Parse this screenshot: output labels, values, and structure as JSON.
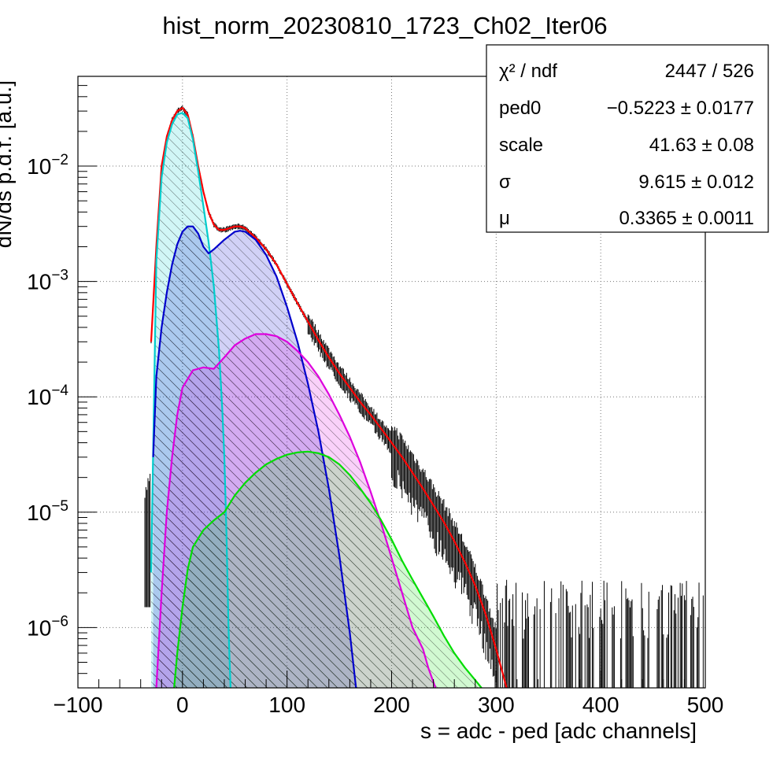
{
  "chart_data": {
    "type": "line",
    "title": "hist_norm_20230810_1723_Ch02_Iter06",
    "xlabel": "s = adc - ped [adc channels]",
    "ylabel": "dN/ds p.d.f. [a.u.]",
    "xlim": [
      -100,
      500
    ],
    "ylim": [
      3e-07,
      0.06
    ],
    "yscale": "log",
    "grid": true,
    "legend_placement": "top-right",
    "x_ticks": [
      {
        "value": -100,
        "label": "−100"
      },
      {
        "value": 0,
        "label": "0"
      },
      {
        "value": 100,
        "label": "100"
      },
      {
        "value": 200,
        "label": "200"
      },
      {
        "value": 300,
        "label": "300"
      },
      {
        "value": 400,
        "label": "400"
      },
      {
        "value": 500,
        "label": "500"
      }
    ],
    "y_ticks": [
      {
        "value": 1e-06,
        "base": "10",
        "exp": "−6"
      },
      {
        "value": 1e-05,
        "base": "10",
        "exp": "−5"
      },
      {
        "value": 0.0001,
        "base": "10",
        "exp": "−4"
      },
      {
        "value": 0.001,
        "base": "10",
        "exp": "−3"
      },
      {
        "value": 0.01,
        "base": "10",
        "exp": "−2"
      }
    ],
    "stats": [
      {
        "label": "χ² / ndf",
        "value": "2447 / 526"
      },
      {
        "label": "ped0",
        "value": "−0.5223 ± 0.0177"
      },
      {
        "label": "scale",
        "value": "41.63 ± 0.08"
      },
      {
        "label": "σ",
        "value": "9.615 ± 0.012"
      },
      {
        "label": "μ",
        "value": "0.3365 ± 0.0011"
      }
    ],
    "series": [
      {
        "color": "#ff0000",
        "hatch": false,
        "points": [
          [
            -30,
            0.0003
          ],
          [
            -25,
            0.002
          ],
          [
            -20,
            0.01
          ],
          [
            -15,
            0.018
          ],
          [
            -10,
            0.025
          ],
          [
            -5,
            0.03
          ],
          [
            0,
            0.032
          ],
          [
            5,
            0.028
          ],
          [
            10,
            0.018
          ],
          [
            15,
            0.01
          ],
          [
            20,
            0.006
          ],
          [
            25,
            0.004
          ],
          [
            30,
            0.0031
          ],
          [
            35,
            0.0028
          ],
          [
            40,
            0.0028
          ],
          [
            45,
            0.0029
          ],
          [
            50,
            0.003
          ],
          [
            55,
            0.003
          ],
          [
            60,
            0.0029
          ],
          [
            70,
            0.0024
          ],
          [
            80,
            0.0019
          ],
          [
            90,
            0.0014
          ],
          [
            100,
            0.00095
          ],
          [
            110,
            0.00065
          ],
          [
            120,
            0.00045
          ],
          [
            130,
            0.00031
          ],
          [
            140,
            0.00022
          ],
          [
            150,
            0.00016
          ],
          [
            160,
            0.00012
          ],
          [
            170,
            9e-05
          ],
          [
            180,
            7e-05
          ],
          [
            190,
            5.3e-05
          ],
          [
            200,
            4e-05
          ],
          [
            210,
            3e-05
          ],
          [
            220,
            2.2e-05
          ],
          [
            230,
            1.6e-05
          ],
          [
            240,
            1.15e-05
          ],
          [
            250,
            8.2e-06
          ],
          [
            260,
            5.6e-06
          ],
          [
            270,
            3.7e-06
          ],
          [
            280,
            2.3e-06
          ],
          [
            290,
            1.3e-06
          ],
          [
            300,
            6.5e-07
          ],
          [
            310,
            3e-07
          ]
        ]
      },
      {
        "color": "#00cccc",
        "hatch": true,
        "points": [
          [
            -30,
            3e-06
          ],
          [
            -25,
            0.0015
          ],
          [
            -20,
            0.008
          ],
          [
            -15,
            0.016
          ],
          [
            -10,
            0.023
          ],
          [
            -5,
            0.028
          ],
          [
            0,
            0.029
          ],
          [
            5,
            0.026
          ],
          [
            10,
            0.017
          ],
          [
            15,
            0.009
          ],
          [
            20,
            0.0045
          ],
          [
            25,
            0.0022
          ],
          [
            30,
            0.0009
          ],
          [
            35,
            0.00025
          ],
          [
            38,
            8e-05
          ],
          [
            40,
            3e-05
          ],
          [
            42,
            7e-06
          ],
          [
            44,
            1e-06
          ],
          [
            46,
            3e-07
          ]
        ]
      },
      {
        "color": "#0000cc",
        "hatch": true,
        "points": [
          [
            -28,
            3e-05
          ],
          [
            -25,
            0.00015
          ],
          [
            -20,
            0.0004
          ],
          [
            -15,
            0.0008
          ],
          [
            -10,
            0.0014
          ],
          [
            -5,
            0.0021
          ],
          [
            0,
            0.0027
          ],
          [
            5,
            0.003
          ],
          [
            10,
            0.003
          ],
          [
            15,
            0.0026
          ],
          [
            20,
            0.002
          ],
          [
            25,
            0.00175
          ],
          [
            30,
            0.0019
          ],
          [
            40,
            0.0023
          ],
          [
            50,
            0.0027
          ],
          [
            55,
            0.00275
          ],
          [
            60,
            0.0027
          ],
          [
            70,
            0.0023
          ],
          [
            80,
            0.0017
          ],
          [
            90,
            0.0011
          ],
          [
            100,
            0.0006
          ],
          [
            110,
            0.0003
          ],
          [
            120,
            0.00013
          ],
          [
            130,
            5e-05
          ],
          [
            140,
            1.6e-05
          ],
          [
            150,
            4.2e-06
          ],
          [
            160,
            9e-07
          ],
          [
            166,
            3e-07
          ]
        ]
      },
      {
        "color": "#dd00dd",
        "hatch": true,
        "points": [
          [
            -25,
            3e-07
          ],
          [
            -20,
            2e-06
          ],
          [
            -15,
            1e-05
          ],
          [
            -10,
            3e-05
          ],
          [
            -5,
            7e-05
          ],
          [
            0,
            0.00012
          ],
          [
            10,
            0.00017
          ],
          [
            20,
            0.00018
          ],
          [
            30,
            0.000175
          ],
          [
            40,
            0.00022
          ],
          [
            50,
            0.00028
          ],
          [
            60,
            0.00032
          ],
          [
            70,
            0.00035
          ],
          [
            80,
            0.00035
          ],
          [
            90,
            0.000335
          ],
          [
            100,
            0.0003
          ],
          [
            110,
            0.00025
          ],
          [
            120,
            0.0002
          ],
          [
            130,
            0.00015
          ],
          [
            140,
            0.000105
          ],
          [
            150,
            7e-05
          ],
          [
            160,
            4.5e-05
          ],
          [
            170,
            2.7e-05
          ],
          [
            180,
            1.5e-05
          ],
          [
            190,
            8e-06
          ],
          [
            200,
            4e-06
          ],
          [
            210,
            2e-06
          ],
          [
            220,
            1e-06
          ],
          [
            230,
            6.5e-07
          ],
          [
            235,
            4.5e-07
          ],
          [
            242,
            3e-07
          ]
        ]
      },
      {
        "color": "#00dd00",
        "hatch": true,
        "points": [
          [
            -8,
            3e-07
          ],
          [
            -5,
            6e-07
          ],
          [
            0,
            1.5e-06
          ],
          [
            5,
            3.2e-06
          ],
          [
            10,
            5e-06
          ],
          [
            20,
            7e-06
          ],
          [
            30,
            8.5e-06
          ],
          [
            40,
            1e-05
          ],
          [
            50,
            1.4e-05
          ],
          [
            60,
            1.8e-05
          ],
          [
            70,
            2.2e-05
          ],
          [
            80,
            2.6e-05
          ],
          [
            90,
            2.9e-05
          ],
          [
            100,
            3.15e-05
          ],
          [
            110,
            3.3e-05
          ],
          [
            120,
            3.35e-05
          ],
          [
            130,
            3.25e-05
          ],
          [
            140,
            3e-05
          ],
          [
            150,
            2.6e-05
          ],
          [
            160,
            2.1e-05
          ],
          [
            170,
            1.6e-05
          ],
          [
            180,
            1.2e-05
          ],
          [
            190,
            8.5e-06
          ],
          [
            200,
            5.8e-06
          ],
          [
            210,
            3.8e-06
          ],
          [
            220,
            2.6e-06
          ],
          [
            230,
            1.8e-06
          ],
          [
            240,
            1.25e-06
          ],
          [
            250,
            8.5e-07
          ],
          [
            260,
            6e-07
          ],
          [
            270,
            4.5e-07
          ],
          [
            280,
            3.5e-07
          ],
          [
            286,
            3e-07
          ]
        ]
      }
    ]
  }
}
